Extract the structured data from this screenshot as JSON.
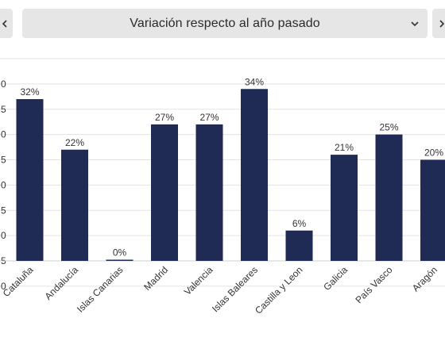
{
  "header": {
    "select_label": "Variación respecto al año pasado",
    "prev_icon": "chevron-left-icon",
    "next_icon": "chevron-right-icon",
    "dropdown_icon": "chevron-down-icon"
  },
  "colors": {
    "bar": "#1f2a55",
    "grid": "#e3e3e3",
    "control_bg": "#e6e6e6"
  },
  "chart_data": {
    "type": "bar",
    "categories": [
      "Cataluña",
      "Andalucía",
      "Islas Canarias",
      "Madrid",
      "Valencia",
      "Islas Baleares",
      "Castilla y Leon",
      "Galicia",
      "País Vasco",
      "Aragón"
    ],
    "values": [
      32,
      22,
      0,
      27,
      27,
      34,
      6,
      21,
      25,
      20
    ],
    "value_labels": [
      "32%",
      "22%",
      "0%",
      "27%",
      "27%",
      "34%",
      "6%",
      "21%",
      "25%",
      "20%"
    ],
    "yticks": [
      "",
      "0",
      "5",
      "0",
      "5",
      "0",
      "5",
      "0",
      "5",
      "0"
    ],
    "ylim": [
      0,
      40
    ],
    "grid": true
  }
}
